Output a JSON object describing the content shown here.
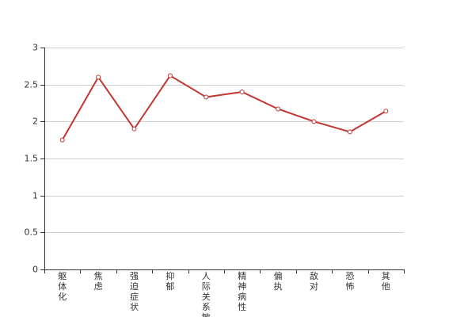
{
  "chart_data": {
    "type": "line",
    "categories": [
      "躯体化",
      "焦虑",
      "强迫症状",
      "抑郁",
      "人际关系敏感",
      "精神病性",
      "偏执",
      "敌对",
      "恐怖",
      "其他"
    ],
    "series": [
      {
        "values": [
          1.75,
          2.6,
          1.9,
          2.62,
          2.33,
          2.4,
          2.17,
          2.0,
          1.86,
          2.14
        ]
      }
    ],
    "yticks": [
      "0",
      "0.5",
      "1",
      "1.5",
      "2",
      "2.5",
      "3"
    ],
    "ylim": [
      0,
      3
    ],
    "grid": true,
    "line_color": "#c23531",
    "title": "",
    "xlabel": "",
    "ylabel": ""
  }
}
